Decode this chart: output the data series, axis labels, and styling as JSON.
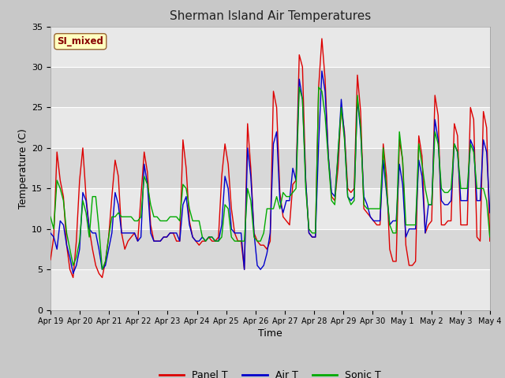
{
  "title": "Sherman Island Air Temperatures",
  "xlabel": "Time",
  "ylabel": "Temperature (C)",
  "ylim": [
    0,
    35
  ],
  "figsize": [
    6.4,
    4.8
  ],
  "dpi": 100,
  "fig_bg": "#c8c8c8",
  "ax_bg": "#e8e8e8",
  "annotation_text": "SI_mixed",
  "annotation_bg": "#ffffc0",
  "annotation_border": "#996633",
  "annotation_text_color": "#880000",
  "x_ticks": [
    "Apr 19",
    "Apr 20",
    "Apr 21",
    "Apr 22",
    "Apr 23",
    "Apr 24",
    "Apr 25",
    "Apr 26",
    "Apr 27",
    "Apr 28",
    "Apr 29",
    "Apr 30",
    "May 1",
    "May 2",
    "May 3",
    "May 4"
  ],
  "panel_color": "#dd0000",
  "air_color": "#0000cc",
  "sonic_color": "#00aa00",
  "line_width": 1.0,
  "grid_color": "#ffffff",
  "yticks": [
    0,
    5,
    10,
    15,
    20,
    25,
    30,
    35
  ],
  "band_ranges": [
    [
      5,
      10
    ],
    [
      15,
      20
    ],
    [
      25,
      30
    ]
  ],
  "band_color": "#d8d8d8",
  "panel_T": [
    6.2,
    9.0,
    19.5,
    16.0,
    14.0,
    8.0,
    5.0,
    4.0,
    8.5,
    16.0,
    20.0,
    14.0,
    10.0,
    7.5,
    5.5,
    4.5,
    4.0,
    6.0,
    9.0,
    14.0,
    18.5,
    16.5,
    9.5,
    7.5,
    8.5,
    9.0,
    9.5,
    8.5,
    14.0,
    19.5,
    17.0,
    10.5,
    8.5,
    8.5,
    8.5,
    9.0,
    9.0,
    9.5,
    9.5,
    8.5,
    8.5,
    21.0,
    17.5,
    11.0,
    9.0,
    8.5,
    8.0,
    8.5,
    8.5,
    9.0,
    8.5,
    8.5,
    9.0,
    16.5,
    20.5,
    18.0,
    12.5,
    9.5,
    8.5,
    8.5,
    5.0,
    23.0,
    17.5,
    9.5,
    8.5,
    8.0,
    8.0,
    7.5,
    8.5,
    27.0,
    25.0,
    14.5,
    11.5,
    11.0,
    10.5,
    15.5,
    16.0,
    31.5,
    30.0,
    16.0,
    9.5,
    9.0,
    9.0,
    27.5,
    33.5,
    28.5,
    19.0,
    14.0,
    13.5,
    17.5,
    25.0,
    22.0,
    15.0,
    14.5,
    15.0,
    29.0,
    24.5,
    12.5,
    12.0,
    11.5,
    11.0,
    10.5,
    10.5,
    20.5,
    16.5,
    7.5,
    6.0,
    6.0,
    21.0,
    18.5,
    8.0,
    5.5,
    5.5,
    6.0,
    21.5,
    19.0,
    9.5,
    10.5,
    11.0,
    26.5,
    24.0,
    10.5,
    10.5,
    11.0,
    11.0,
    23.0,
    21.5,
    10.5,
    10.5,
    10.5,
    25.0,
    23.5,
    9.0,
    8.5,
    24.5,
    22.5,
    8.5
  ],
  "air_T": [
    9.5,
    9.0,
    7.5,
    11.0,
    10.5,
    8.0,
    6.5,
    4.5,
    5.5,
    7.5,
    14.5,
    13.5,
    10.0,
    9.5,
    9.5,
    7.5,
    5.0,
    5.5,
    7.5,
    9.5,
    14.5,
    13.0,
    9.5,
    9.5,
    9.5,
    9.5,
    9.5,
    8.5,
    9.0,
    18.0,
    15.5,
    9.5,
    8.5,
    8.5,
    8.5,
    9.0,
    9.0,
    9.5,
    9.5,
    9.5,
    8.5,
    13.0,
    14.0,
    10.5,
    9.0,
    8.5,
    8.5,
    9.0,
    8.5,
    9.0,
    9.0,
    8.5,
    8.5,
    10.5,
    16.5,
    15.0,
    10.0,
    9.5,
    9.5,
    9.5,
    5.0,
    20.0,
    16.5,
    9.5,
    5.5,
    5.0,
    5.5,
    7.0,
    9.5,
    20.5,
    22.0,
    13.5,
    12.0,
    13.5,
    13.5,
    17.5,
    16.0,
    28.5,
    26.0,
    16.0,
    9.5,
    9.0,
    9.0,
    20.5,
    29.5,
    27.0,
    19.0,
    14.5,
    14.0,
    19.0,
    26.0,
    21.5,
    14.0,
    13.5,
    14.0,
    26.0,
    22.0,
    14.0,
    13.0,
    11.5,
    11.0,
    11.0,
    11.0,
    18.5,
    14.5,
    10.5,
    11.0,
    11.0,
    18.0,
    15.5,
    9.0,
    10.0,
    10.0,
    10.0,
    18.5,
    16.5,
    9.5,
    13.0,
    13.0,
    23.5,
    21.0,
    13.5,
    13.0,
    13.0,
    13.5,
    20.5,
    19.5,
    13.5,
    13.5,
    13.5,
    21.0,
    20.0,
    13.5,
    13.5,
    21.0,
    19.5,
    12.0
  ],
  "sonic_T": [
    11.5,
    10.0,
    16.0,
    15.0,
    13.5,
    9.5,
    7.5,
    5.5,
    6.5,
    8.5,
    13.5,
    12.0,
    9.0,
    14.0,
    14.0,
    10.0,
    5.0,
    6.0,
    9.0,
    11.5,
    11.5,
    12.0,
    11.5,
    11.5,
    11.5,
    11.5,
    11.0,
    11.0,
    11.5,
    16.5,
    15.5,
    13.0,
    11.5,
    11.5,
    11.0,
    11.0,
    11.0,
    11.5,
    11.5,
    11.5,
    11.0,
    15.5,
    15.0,
    12.5,
    11.0,
    11.0,
    11.0,
    9.0,
    8.5,
    9.0,
    9.0,
    8.5,
    8.5,
    9.0,
    13.0,
    12.5,
    9.0,
    8.5,
    8.5,
    8.5,
    8.5,
    15.0,
    13.5,
    9.0,
    8.5,
    8.5,
    9.5,
    12.5,
    12.5,
    12.5,
    14.0,
    12.5,
    14.5,
    14.0,
    14.0,
    14.5,
    15.0,
    27.5,
    26.0,
    15.0,
    10.0,
    9.5,
    9.5,
    27.5,
    27.0,
    24.0,
    18.5,
    13.5,
    13.0,
    19.5,
    25.0,
    21.0,
    14.0,
    13.0,
    13.5,
    26.5,
    22.5,
    13.0,
    12.5,
    12.5,
    12.5,
    12.5,
    12.5,
    20.0,
    15.0,
    10.5,
    9.5,
    9.5,
    22.0,
    18.5,
    10.5,
    10.5,
    10.5,
    10.5,
    20.5,
    18.0,
    15.0,
    13.0,
    13.0,
    22.0,
    20.5,
    15.0,
    14.5,
    14.5,
    15.0,
    20.5,
    19.5,
    15.0,
    15.0,
    15.0,
    20.5,
    19.5,
    15.0,
    15.0,
    15.0,
    13.5,
    9.0
  ]
}
